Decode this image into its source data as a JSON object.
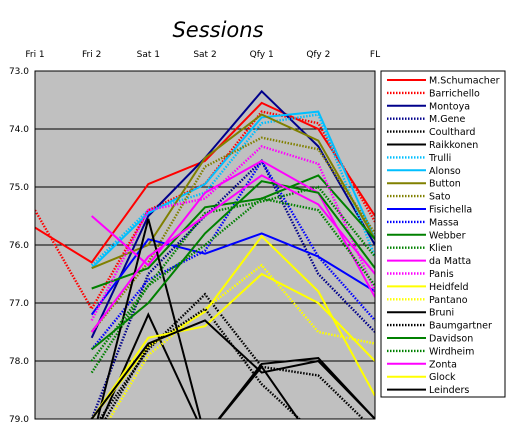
{
  "chart_data": {
    "type": "line",
    "title": "Sessions",
    "xlabel": "",
    "ylabel": "",
    "categories": [
      "Fri 1",
      "Fri 2",
      "Sat 1",
      "Sat 2",
      "Qfy 1",
      "Qfy 2",
      "FL"
    ],
    "ylim": [
      73.0,
      79.0
    ],
    "y_reversed": true,
    "y_ticks": [
      "73.0",
      "74.0",
      "75.0",
      "76.0",
      "77.0",
      "78.0",
      "79.0"
    ],
    "grid": "horizontal",
    "plot_background": "#c0c0c0",
    "legend_position": "right",
    "series": [
      {
        "name": "M.Schumacher",
        "color": "#ff0000",
        "dash": "solid",
        "values": [
          75.7,
          76.3,
          74.95,
          74.55,
          73.55,
          74.0,
          75.5
        ]
      },
      {
        "name": "Barrichello",
        "color": "#ff0000",
        "dash": "dotted",
        "values": [
          75.4,
          77.1,
          75.4,
          74.95,
          73.7,
          73.9,
          75.6
        ]
      },
      {
        "name": "Montoya",
        "color": "#00008b",
        "dash": "solid",
        "values": [
          null,
          77.6,
          75.5,
          74.5,
          73.35,
          74.3,
          76.0
        ]
      },
      {
        "name": "M.Gene",
        "color": "#00008b",
        "dash": "dotted",
        "values": [
          null,
          79.0,
          76.5,
          75.5,
          74.55,
          76.5,
          77.5
        ]
      },
      {
        "name": "Coulthard",
        "color": "#000000",
        "dash": "dotted",
        "values": [
          null,
          79.2,
          77.8,
          76.85,
          78.1,
          78.25,
          79.2
        ]
      },
      {
        "name": "Raikkonen",
        "color": "#000000",
        "dash": "solid",
        "values": [
          null,
          79.4,
          77.2,
          79.3,
          78.05,
          77.95,
          79.0
        ]
      },
      {
        "name": "Trulli",
        "color": "#00bfff",
        "dash": "dotted",
        "values": [
          null,
          76.35,
          75.4,
          75.1,
          73.9,
          73.75,
          76.2
        ]
      },
      {
        "name": "Alonso",
        "color": "#00bfff",
        "dash": "solid",
        "values": [
          null,
          76.4,
          75.45,
          74.95,
          73.8,
          73.7,
          75.9
        ]
      },
      {
        "name": "Button",
        "color": "#808000",
        "dash": "solid",
        "values": [
          null,
          76.4,
          76.0,
          74.5,
          73.75,
          74.2,
          75.9
        ]
      },
      {
        "name": "Sato",
        "color": "#808000",
        "dash": "dotted",
        "values": [
          null,
          77.5,
          76.3,
          74.65,
          74.15,
          74.35,
          75.8
        ]
      },
      {
        "name": "Fisichella",
        "color": "#0000ff",
        "dash": "solid",
        "values": [
          null,
          77.2,
          75.9,
          76.15,
          75.8,
          76.2,
          76.8
        ]
      },
      {
        "name": "Massa",
        "color": "#0000ff",
        "dash": "dotted",
        "values": [
          null,
          77.8,
          76.6,
          76.1,
          74.55,
          76.2,
          77.3
        ]
      },
      {
        "name": "Webber",
        "color": "#008000",
        "dash": "solid",
        "values": [
          null,
          76.75,
          76.4,
          75.35,
          75.2,
          74.8,
          75.9
        ]
      },
      {
        "name": "Klien",
        "color": "#008000",
        "dash": "dotted",
        "values": [
          null,
          78.2,
          76.7,
          75.45,
          75.25,
          75.0,
          76.2
        ]
      },
      {
        "name": "da Matta",
        "color": "#ff00ff",
        "dash": "solid",
        "values": [
          null,
          75.5,
          76.35,
          75.1,
          74.55,
          75.1,
          76.9
        ]
      },
      {
        "name": "Panis",
        "color": "#ff00ff",
        "dash": "dotted",
        "values": [
          null,
          77.3,
          75.4,
          75.2,
          74.3,
          74.6,
          76.8
        ]
      },
      {
        "name": "Heidfeld",
        "color": "#ffff00",
        "dash": "solid",
        "values": [
          null,
          79.0,
          77.75,
          77.15,
          75.85,
          76.8,
          78.6
        ]
      },
      {
        "name": "Pantano",
        "color": "#ffff00",
        "dash": "dotted",
        "values": [
          null,
          79.5,
          77.9,
          77.1,
          76.35,
          77.5,
          77.7
        ]
      },
      {
        "name": "Bruni",
        "color": "#000000",
        "dash": "solid",
        "values": [
          null,
          79.4,
          75.55,
          79.3,
          78.1,
          79.5,
          79.5
        ]
      },
      {
        "name": "Baumgartner",
        "color": "#000000",
        "dash": "dotted",
        "values": [
          null,
          79.4,
          77.75,
          77.1,
          78.4,
          79.3,
          79.5
        ]
      },
      {
        "name": "Davidson",
        "color": "#008000",
        "dash": "solid",
        "values": [
          null,
          77.8,
          77.0,
          75.8,
          74.9,
          75.1,
          76.4
        ]
      },
      {
        "name": "Wirdheim",
        "color": "#008000",
        "dash": "dotted",
        "values": [
          null,
          78.0,
          76.7,
          76.0,
          75.2,
          75.4,
          76.7
        ]
      },
      {
        "name": "Zonta",
        "color": "#ff00ff",
        "dash": "solid",
        "values": [
          null,
          77.5,
          76.2,
          75.5,
          74.8,
          75.3,
          76.5
        ]
      },
      {
        "name": "Glock",
        "color": "#ffff00",
        "dash": "solid",
        "values": [
          null,
          79.0,
          77.6,
          77.4,
          76.5,
          77.0,
          78.0
        ]
      },
      {
        "name": "Leinders",
        "color": "#000000",
        "dash": "solid",
        "values": [
          null,
          79.0,
          77.7,
          77.3,
          78.2,
          78.0,
          79.0
        ]
      }
    ]
  }
}
